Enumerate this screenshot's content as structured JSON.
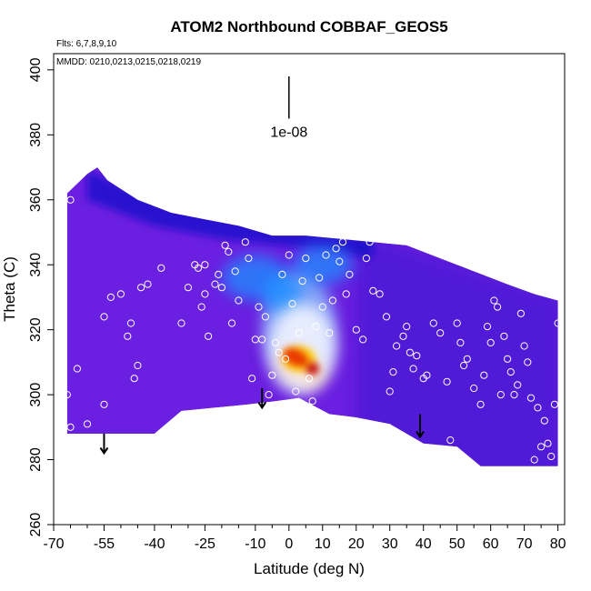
{
  "chart_data": {
    "type": "heatmap",
    "title": "ATOM2 Northbound COBBAF_GEOS5",
    "flights_note": "Flts: 6,7,8,9,10",
    "dates_note": "MMDD: 0210,0213,0215,0218,0219",
    "xlabel": "Latitude (deg N)",
    "ylabel": "Theta (C)",
    "xlim": [
      -70,
      82
    ],
    "ylim": [
      260,
      405
    ],
    "x_ticks": [
      -70,
      -55,
      -40,
      -25,
      -10,
      0,
      10,
      20,
      30,
      40,
      50,
      60,
      70,
      80
    ],
    "x_tick_labels": [
      "-70",
      "-55",
      "-40",
      "-25",
      "-10",
      "0",
      "10",
      "20",
      "30",
      "40",
      "50",
      "60",
      "70",
      "80"
    ],
    "y_ticks": [
      260,
      280,
      300,
      320,
      340,
      360,
      380,
      400
    ],
    "y_tick_labels": [
      "260",
      "280",
      "300",
      "320",
      "340",
      "360",
      "380",
      "400"
    ],
    "scale_annotation": {
      "label": "1e-08",
      "x": 0,
      "y_top": 398,
      "y_bottom": 385
    },
    "colors": {
      "background_field": "#6b1fe0",
      "low": "#3d12d0",
      "mid": "#1e90ff",
      "high": "#ffffff",
      "peak": "#e83000",
      "max": "#c00000"
    },
    "envelope_top": [
      [
        -66,
        362
      ],
      [
        -60,
        368
      ],
      [
        -57,
        370
      ],
      [
        -54,
        366
      ],
      [
        -45,
        360
      ],
      [
        -35,
        356
      ],
      [
        -25,
        354
      ],
      [
        -15,
        352
      ],
      [
        -5,
        349
      ],
      [
        5,
        349
      ],
      [
        15,
        348
      ],
      [
        25,
        347
      ],
      [
        35,
        346
      ],
      [
        45,
        342
      ],
      [
        55,
        338
      ],
      [
        65,
        334
      ],
      [
        73,
        331
      ],
      [
        80,
        329
      ]
    ],
    "envelope_bottom": [
      [
        80,
        278
      ],
      [
        57,
        278
      ],
      [
        50,
        284
      ],
      [
        40,
        285
      ],
      [
        30,
        291
      ],
      [
        20,
        293
      ],
      [
        12,
        294
      ],
      [
        3,
        299
      ],
      [
        -4,
        298
      ],
      [
        -12,
        297
      ],
      [
        -22,
        296
      ],
      [
        -32,
        295
      ],
      [
        -40,
        288
      ],
      [
        -50,
        288
      ],
      [
        -60,
        288
      ],
      [
        -66,
        288
      ]
    ],
    "field_blobs": [
      {
        "x": 3,
        "y": 320,
        "sx": 11,
        "sy": 18,
        "level": 0.55
      },
      {
        "x": -10,
        "y": 336,
        "sx": 10,
        "sy": 7,
        "level": 0.45
      },
      {
        "x": 10,
        "y": 340,
        "sx": 9,
        "sy": 6,
        "level": 0.45
      },
      {
        "x": 2,
        "y": 310,
        "sx": 5,
        "sy": 5,
        "level": 0.95
      },
      {
        "x": 6,
        "y": 307,
        "sx": 4,
        "sy": 4,
        "level": 0.85
      },
      {
        "x": -2,
        "y": 331,
        "sx": 6,
        "sy": 6,
        "level": 0.4
      }
    ],
    "arrows": [
      {
        "x": -55,
        "y_top": 288,
        "y_bottom": 282
      },
      {
        "x": -8,
        "y_top": 302,
        "y_bottom": 296
      },
      {
        "x": 39,
        "y_top": 294,
        "y_bottom": 287
      }
    ],
    "samples": [
      [
        -68,
        335
      ],
      [
        -65,
        360
      ],
      [
        -66,
        300
      ],
      [
        -67,
        290
      ],
      [
        -65,
        290
      ],
      [
        -63,
        308
      ],
      [
        -60,
        291
      ],
      [
        -55,
        324
      ],
      [
        -55,
        297
      ],
      [
        -53,
        330
      ],
      [
        -50,
        331
      ],
      [
        -48,
        318
      ],
      [
        -47,
        322
      ],
      [
        -46,
        305
      ],
      [
        -45,
        309
      ],
      [
        -44,
        333
      ],
      [
        -42,
        334
      ],
      [
        -38,
        339
      ],
      [
        -32,
        322
      ],
      [
        -30,
        333
      ],
      [
        -28,
        340
      ],
      [
        -27,
        339
      ],
      [
        -26,
        327
      ],
      [
        -25,
        331
      ],
      [
        -25,
        340
      ],
      [
        -24,
        318
      ],
      [
        -22,
        334
      ],
      [
        -21,
        337
      ],
      [
        -20,
        333
      ],
      [
        -19,
        346
      ],
      [
        -18,
        344
      ],
      [
        -17,
        322
      ],
      [
        -16,
        338
      ],
      [
        -15,
        329
      ],
      [
        -13,
        347
      ],
      [
        -12,
        342
      ],
      [
        -11,
        305
      ],
      [
        -10,
        317
      ],
      [
        -9,
        327
      ],
      [
        -8,
        317
      ],
      [
        -7,
        324
      ],
      [
        -6,
        300
      ],
      [
        -5,
        306
      ],
      [
        -4,
        316
      ],
      [
        -3,
        313
      ],
      [
        -2,
        337
      ],
      [
        -1,
        311
      ],
      [
        0,
        343
      ],
      [
        1,
        328
      ],
      [
        2,
        301
      ],
      [
        3,
        319
      ],
      [
        4,
        335
      ],
      [
        5,
        342
      ],
      [
        6,
        305
      ],
      [
        7,
        298
      ],
      [
        8,
        321
      ],
      [
        9,
        336
      ],
      [
        10,
        327
      ],
      [
        11,
        343
      ],
      [
        12,
        319
      ],
      [
        13,
        329
      ],
      [
        14,
        345
      ],
      [
        15,
        341
      ],
      [
        16,
        347
      ],
      [
        17,
        331
      ],
      [
        18,
        337
      ],
      [
        20,
        320
      ],
      [
        22,
        317
      ],
      [
        23,
        342
      ],
      [
        24,
        347
      ],
      [
        25,
        332
      ],
      [
        27,
        331
      ],
      [
        29,
        324
      ],
      [
        30,
        301
      ],
      [
        31,
        307
      ],
      [
        32,
        315
      ],
      [
        34,
        318
      ],
      [
        35,
        321
      ],
      [
        36,
        313
      ],
      [
        37,
        308
      ],
      [
        38,
        312
      ],
      [
        40,
        305
      ],
      [
        41,
        306
      ],
      [
        43,
        322
      ],
      [
        45,
        319
      ],
      [
        47,
        304
      ],
      [
        48,
        286
      ],
      [
        50,
        322
      ],
      [
        51,
        316
      ],
      [
        52,
        309
      ],
      [
        53,
        311
      ],
      [
        55,
        302
      ],
      [
        57,
        297
      ],
      [
        58,
        306
      ],
      [
        59,
        321
      ],
      [
        60,
        316
      ],
      [
        61,
        329
      ],
      [
        62,
        327
      ],
      [
        63,
        300
      ],
      [
        64,
        318
      ],
      [
        65,
        311
      ],
      [
        66,
        307
      ],
      [
        67,
        300
      ],
      [
        68,
        303
      ],
      [
        69,
        325
      ],
      [
        70,
        315
      ],
      [
        71,
        310
      ],
      [
        72,
        299
      ],
      [
        73,
        280
      ],
      [
        74,
        296
      ],
      [
        75,
        284
      ],
      [
        76,
        292
      ],
      [
        77,
        285
      ],
      [
        78,
        281
      ],
      [
        79,
        297
      ],
      [
        80,
        322
      ]
    ]
  }
}
